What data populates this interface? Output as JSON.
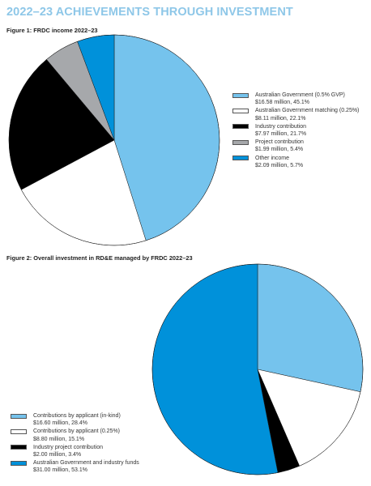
{
  "page": {
    "title": "2022–23 ACHIEVEMENTS THROUGH INVESTMENT"
  },
  "chart_data": [
    {
      "type": "pie",
      "title": "Figure 1: FRDC income 2022–23",
      "legend_position": "right",
      "slices": [
        {
          "label": "Australian Government (0.5% GVP)",
          "value_label": "$16.58 million, 45.1%",
          "value": 16.58,
          "percent": 45.1,
          "color": "#75c3ed"
        },
        {
          "label": "Australian Government matching (0.25%)",
          "value_label": "$8.11 million, 22.1%",
          "value": 8.11,
          "percent": 22.1,
          "color": "#ffffff"
        },
        {
          "label": "Industry contribution",
          "value_label": "$7.97 million, 21.7%",
          "value": 7.97,
          "percent": 21.7,
          "color": "#000000"
        },
        {
          "label": "Project contribution",
          "value_label": "$1.99 million, 5.4%",
          "value": 1.99,
          "percent": 5.4,
          "color": "#a6a8ab"
        },
        {
          "label": "Other income",
          "value_label": "$2.09 million, 5.7%",
          "value": 2.09,
          "percent": 5.7,
          "color": "#0091da"
        }
      ]
    },
    {
      "type": "pie",
      "title": "Figure 2: Overall investment in RD&E managed by FRDC 2022–23",
      "legend_position": "bottom-left",
      "slices": [
        {
          "label": "Contributions by applicant (in-kind)",
          "value_label": "$16.60 million, 28.4%",
          "value": 16.6,
          "percent": 28.4,
          "color": "#75c3ed"
        },
        {
          "label": "Contributions by applicant (0.25%)",
          "value_label": "$8.80 million, 15.1%",
          "value": 8.8,
          "percent": 15.1,
          "color": "#ffffff"
        },
        {
          "label": "Industry project contribution",
          "value_label": "$2.00 million, 3.4%",
          "value": 2.0,
          "percent": 3.4,
          "color": "#000000"
        },
        {
          "label": "Australian Government and industry funds",
          "value_label": "$31.00 million, 53.1%",
          "value": 31.0,
          "percent": 53.1,
          "color": "#0091da"
        }
      ]
    }
  ]
}
